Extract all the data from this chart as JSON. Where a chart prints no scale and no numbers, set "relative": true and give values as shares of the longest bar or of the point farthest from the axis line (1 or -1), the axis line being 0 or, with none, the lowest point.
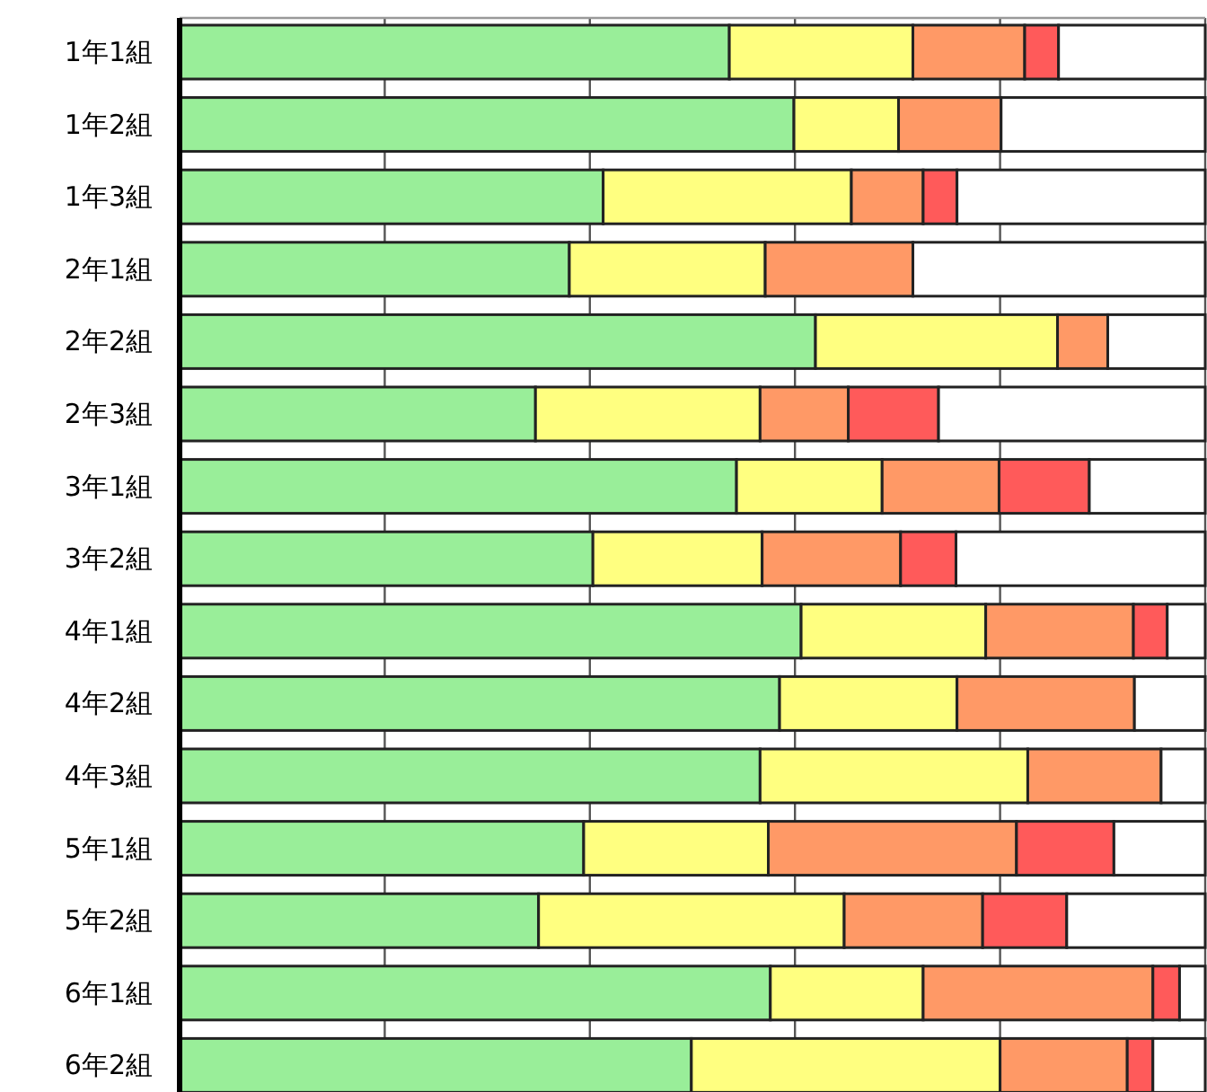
{
  "chart_data": {
    "type": "bar",
    "orientation": "horizontal",
    "stacked": true,
    "relative": true,
    "grid": "x",
    "categories": [
      "1年1組",
      "1年2組",
      "1年3組",
      "2年1組",
      "2年2組",
      "2年3組",
      "3年1組",
      "3年2組",
      "4年1組",
      "4年2組",
      "4年3組",
      "5年1組",
      "5年2組",
      "6年1組",
      "6年2組"
    ],
    "series": [
      {
        "color": "#99ee99",
        "values": [
          0.536,
          0.599,
          0.413,
          0.38,
          0.62,
          0.347,
          0.543,
          0.403,
          0.606,
          0.585,
          0.566,
          0.394,
          0.35,
          0.576,
          0.499
        ]
      },
      {
        "color": "#ffff80",
        "values": [
          0.179,
          0.102,
          0.242,
          0.191,
          0.236,
          0.219,
          0.142,
          0.165,
          0.18,
          0.173,
          0.261,
          0.18,
          0.298,
          0.149,
          0.301
        ]
      },
      {
        "color": "#ff9966",
        "values": [
          0.109,
          0.1,
          0.07,
          0.144,
          0.049,
          0.086,
          0.114,
          0.135,
          0.144,
          0.173,
          0.13,
          0.242,
          0.135,
          0.224,
          0.124
        ]
      },
      {
        "color": "#ff5a5a",
        "values": [
          0.033,
          0,
          0.033,
          0,
          0,
          0.088,
          0.088,
          0.054,
          0.033,
          0,
          0,
          0.095,
          0.082,
          0.026,
          0.025
        ]
      },
      {
        "color": "#ffffff",
        "values": [
          0.143,
          0.199,
          0.242,
          0.285,
          0.095,
          0.26,
          0.113,
          0.243,
          0.037,
          0.069,
          0.043,
          0.089,
          0.135,
          0.025,
          0.051
        ]
      }
    ]
  }
}
